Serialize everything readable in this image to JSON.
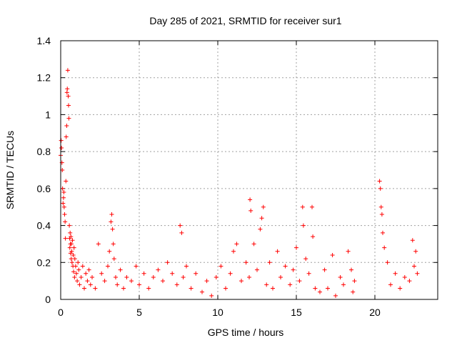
{
  "chart_data": {
    "type": "scatter",
    "title": "Day 285 of 2021, SRMTID for receiver sur1",
    "xlabel": "GPS time / hours",
    "ylabel": "SRMTID / TECUs",
    "xlim": [
      0,
      24
    ],
    "ylim": [
      0,
      1.4
    ],
    "xticks": [
      0,
      5,
      10,
      15,
      20
    ],
    "yticks": [
      0,
      0.2,
      0.4,
      0.6,
      0.8,
      1,
      1.2,
      1.4
    ],
    "xtick_labels": [
      "0",
      "5",
      "10",
      "15",
      "20"
    ],
    "ytick_labels": [
      "0",
      "0.2",
      "0.4",
      "0.6",
      "0.8",
      "1",
      "1.2",
      "1.4"
    ],
    "grid": true,
    "marker": "+",
    "color": "#ff0000",
    "series": [
      {
        "name": "sur1",
        "x": [
          0.0,
          0.03,
          0.05,
          0.08,
          0.1,
          0.12,
          0.15,
          0.18,
          0.2,
          0.22,
          0.25,
          0.28,
          0.3,
          0.33,
          0.35,
          0.38,
          0.4,
          0.42,
          0.45,
          0.48,
          0.5,
          0.52,
          0.55,
          0.57,
          0.58,
          0.6,
          0.62,
          0.63,
          0.65,
          0.67,
          0.68,
          0.7,
          0.72,
          0.75,
          0.78,
          0.8,
          0.82,
          0.85,
          0.88,
          0.9,
          0.95,
          1.0,
          1.05,
          1.1,
          1.15,
          1.2,
          1.3,
          1.4,
          1.5,
          1.6,
          1.7,
          1.8,
          1.9,
          2.0,
          2.2,
          2.4,
          2.6,
          2.8,
          3.0,
          3.1,
          3.2,
          3.25,
          3.3,
          3.35,
          3.4,
          3.5,
          3.6,
          3.8,
          4.0,
          4.2,
          4.5,
          4.8,
          5.0,
          5.3,
          5.6,
          5.9,
          6.2,
          6.5,
          6.8,
          7.1,
          7.4,
          7.6,
          7.7,
          7.8,
          8.0,
          8.3,
          8.6,
          9.0,
          9.3,
          9.6,
          9.9,
          10.2,
          10.5,
          10.8,
          11.0,
          11.2,
          11.5,
          11.8,
          12.0,
          12.05,
          12.1,
          12.3,
          12.5,
          12.7,
          12.8,
          12.9,
          13.1,
          13.3,
          13.5,
          13.8,
          14.0,
          14.3,
          14.6,
          14.8,
          15.0,
          15.2,
          15.4,
          15.45,
          15.6,
          15.8,
          16.0,
          16.05,
          16.2,
          16.5,
          16.8,
          17.0,
          17.3,
          17.5,
          17.8,
          18.0,
          18.3,
          18.5,
          18.6,
          18.7,
          20.3,
          20.35,
          20.4,
          20.45,
          20.5,
          20.6,
          20.8,
          21.0,
          21.3,
          21.6,
          21.9,
          22.2,
          22.4,
          22.5,
          22.6,
          22.7
        ],
        "y": [
          0.78,
          0.86,
          0.82,
          0.74,
          0.7,
          0.6,
          0.52,
          0.55,
          0.58,
          0.5,
          0.46,
          0.42,
          0.33,
          0.64,
          0.88,
          0.94,
          1.12,
          1.14,
          1.24,
          1.1,
          1.05,
          0.98,
          0.4,
          0.33,
          0.28,
          0.36,
          0.3,
          0.25,
          0.34,
          0.22,
          0.3,
          0.26,
          0.2,
          0.32,
          0.18,
          0.24,
          0.15,
          0.28,
          0.12,
          0.22,
          0.18,
          0.14,
          0.1,
          0.2,
          0.16,
          0.08,
          0.12,
          0.18,
          0.06,
          0.14,
          0.1,
          0.16,
          0.08,
          0.12,
          0.06,
          0.3,
          0.14,
          0.1,
          0.18,
          0.26,
          0.42,
          0.46,
          0.38,
          0.3,
          0.22,
          0.12,
          0.08,
          0.16,
          0.06,
          0.12,
          0.1,
          0.18,
          0.08,
          0.14,
          0.06,
          0.12,
          0.16,
          0.1,
          0.2,
          0.14,
          0.08,
          0.4,
          0.36,
          0.12,
          0.18,
          0.06,
          0.14,
          0.04,
          0.1,
          0.02,
          0.12,
          0.18,
          0.06,
          0.14,
          0.26,
          0.3,
          0.1,
          0.2,
          0.12,
          0.54,
          0.48,
          0.3,
          0.16,
          0.38,
          0.44,
          0.5,
          0.08,
          0.2,
          0.06,
          0.26,
          0.12,
          0.18,
          0.08,
          0.16,
          0.28,
          0.1,
          0.5,
          0.4,
          0.22,
          0.14,
          0.5,
          0.34,
          0.06,
          0.04,
          0.16,
          0.06,
          0.24,
          0.02,
          0.12,
          0.08,
          0.26,
          0.16,
          0.04,
          0.1,
          0.64,
          0.6,
          0.5,
          0.46,
          0.36,
          0.28,
          0.2,
          0.08,
          0.14,
          0.06,
          0.12,
          0.1,
          0.32,
          0.18,
          0.26,
          0.14
        ]
      }
    ]
  }
}
